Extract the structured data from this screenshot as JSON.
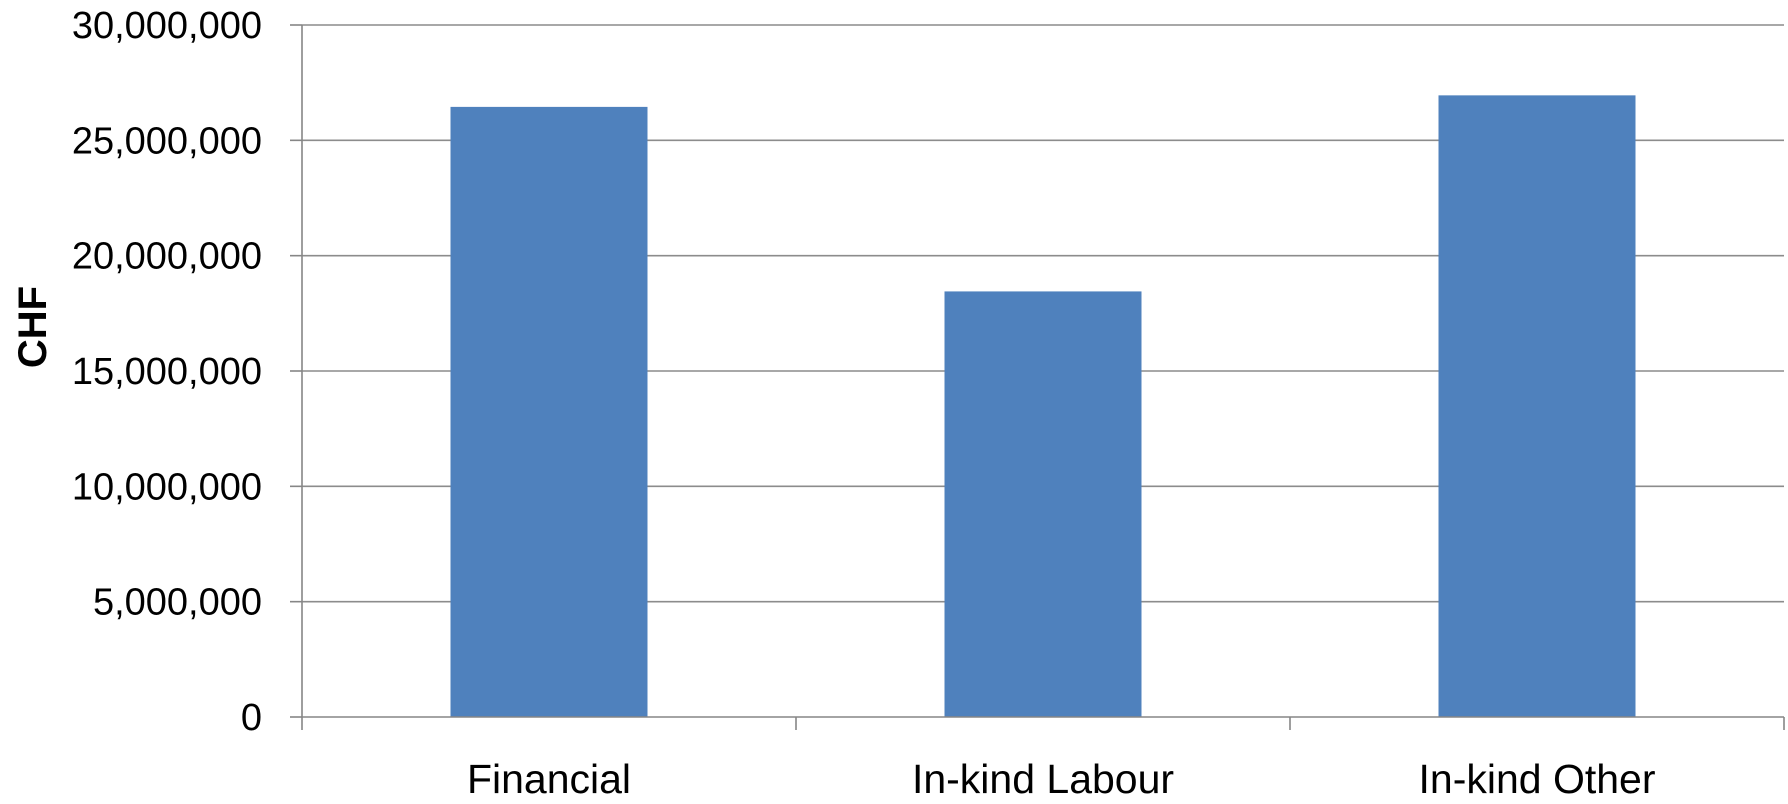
{
  "chart_data": {
    "type": "bar",
    "title": "",
    "xlabel": "",
    "ylabel": "CHF",
    "categories": [
      "Financial",
      "In-kind Labour",
      "In-kind Other"
    ],
    "values": [
      26450000,
      18450000,
      26950000
    ],
    "ylim": [
      0,
      30000000
    ],
    "yticks": [
      0,
      5000000,
      10000000,
      15000000,
      20000000,
      25000000,
      30000000
    ],
    "ytick_labels": [
      "0",
      "5,000,000",
      "10,000,000",
      "15,000,000",
      "20,000,000",
      "25,000,000",
      "30,000,000"
    ],
    "grid": true,
    "legend": "none",
    "colors": {
      "bar": "#4F81BD",
      "grid": "#8c8c8c",
      "axis": "#868686"
    }
  }
}
